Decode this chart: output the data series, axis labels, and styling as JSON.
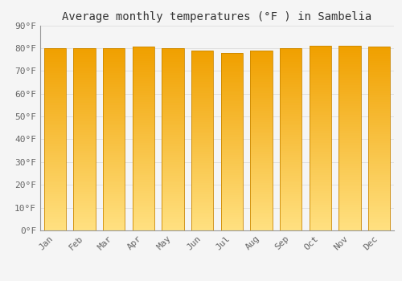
{
  "title": "Average monthly temperatures (°F ) in Sambelia",
  "months": [
    "Jan",
    "Feb",
    "Mar",
    "Apr",
    "May",
    "Jun",
    "Jul",
    "Aug",
    "Sep",
    "Oct",
    "Nov",
    "Dec"
  ],
  "values": [
    80,
    80,
    80,
    80.5,
    80,
    79,
    78,
    79,
    80,
    81,
    81,
    80.5
  ],
  "bar_color_center": "#FFD966",
  "bar_color_edge": "#F0A500",
  "background_color": "#F5F5F5",
  "plot_bg_color": "#F5F5F5",
  "grid_color": "#D8D8D8",
  "ylim": [
    0,
    90
  ],
  "ytick_step": 10,
  "title_fontsize": 10,
  "tick_fontsize": 8,
  "font_family": "monospace"
}
